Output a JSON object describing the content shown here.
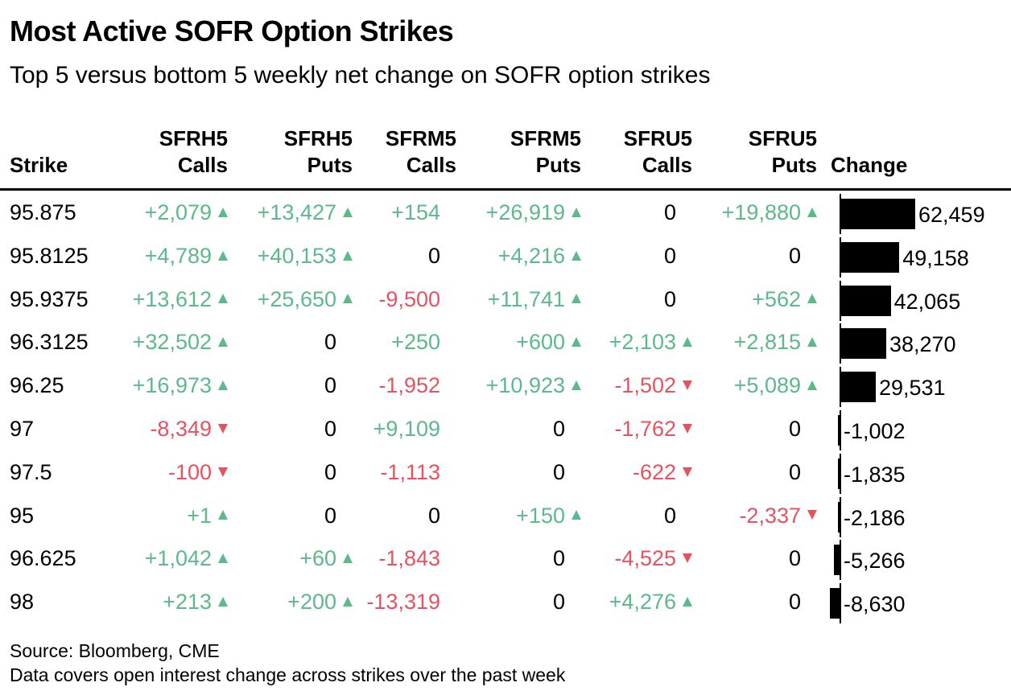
{
  "title": "Most Active SOFR Option Strikes",
  "subtitle": "Top 5 versus bottom 5 weekly net change on SOFR option strikes",
  "colors": {
    "positive": "#5bb98a",
    "negative": "#e4535f",
    "bar": "#000000"
  },
  "headers": {
    "strike": "Strike",
    "c1": [
      "SFRH5",
      "Calls"
    ],
    "c2": [
      "SFRH5",
      "Puts"
    ],
    "c3": [
      "SFRM5",
      "Calls"
    ],
    "c4": [
      "SFRM5",
      "Puts"
    ],
    "c5": [
      "SFRU5",
      "Calls"
    ],
    "c6": [
      "SFRU5",
      "Puts"
    ],
    "change": "Change"
  },
  "chart_data": {
    "type": "table",
    "title": "Most Active SOFR Option Strikes",
    "subtitle": "Top 5 versus bottom 5 weekly net change on SOFR option strikes",
    "columns": [
      "Strike",
      "SFRH5 Calls",
      "SFRH5 Puts",
      "SFRM5 Calls",
      "SFRM5 Puts",
      "SFRU5 Calls",
      "SFRU5 Puts",
      "Change"
    ],
    "rows": [
      {
        "strike": "95.875",
        "values": [
          "+2,079",
          "+13,427",
          "+154",
          "+26,919",
          "0",
          "+19,880"
        ],
        "arrows": [
          "up",
          "up",
          "",
          "up",
          "",
          "up"
        ],
        "change": 62459,
        "change_label": "62,459"
      },
      {
        "strike": "95.8125",
        "values": [
          "+4,789",
          "+40,153",
          "0",
          "+4,216",
          "0",
          "0"
        ],
        "arrows": [
          "up",
          "up",
          "",
          "up",
          "",
          ""
        ],
        "change": 49158,
        "change_label": "49,158"
      },
      {
        "strike": "95.9375",
        "values": [
          "+13,612",
          "+25,650",
          "-9,500",
          "+11,741",
          "0",
          "+562"
        ],
        "arrows": [
          "up",
          "up",
          "",
          "up",
          "",
          "up"
        ],
        "change": 42065,
        "change_label": "42,065"
      },
      {
        "strike": "96.3125",
        "values": [
          "+32,502",
          "0",
          "+250",
          "+600",
          "+2,103",
          "+2,815"
        ],
        "arrows": [
          "up",
          "",
          "",
          "up",
          "up",
          "up"
        ],
        "change": 38270,
        "change_label": "38,270"
      },
      {
        "strike": "96.25",
        "values": [
          "+16,973",
          "0",
          "-1,952",
          "+10,923",
          "-1,502",
          "+5,089"
        ],
        "arrows": [
          "up",
          "",
          "",
          "up",
          "down",
          "up"
        ],
        "change": 29531,
        "change_label": "29,531"
      },
      {
        "strike": "97",
        "values": [
          "-8,349",
          "0",
          "+9,109",
          "0",
          "-1,762",
          "0"
        ],
        "arrows": [
          "down",
          "",
          "",
          "",
          "down",
          ""
        ],
        "change": -1002,
        "change_label": "-1,002"
      },
      {
        "strike": "97.5",
        "values": [
          "-100",
          "0",
          "-1,113",
          "0",
          "-622",
          "0"
        ],
        "arrows": [
          "down",
          "",
          "",
          "",
          "down",
          ""
        ],
        "change": -1835,
        "change_label": "-1,835"
      },
      {
        "strike": "95",
        "values": [
          "+1",
          "0",
          "0",
          "+150",
          "0",
          "-2,337"
        ],
        "arrows": [
          "up",
          "",
          "",
          "up",
          "",
          "down"
        ],
        "change": -2186,
        "change_label": "-2,186"
      },
      {
        "strike": "96.625",
        "values": [
          "+1,042",
          "+60",
          "-1,843",
          "0",
          "-4,525",
          "0"
        ],
        "arrows": [
          "up",
          "up",
          "",
          "",
          "down",
          ""
        ],
        "change": -5266,
        "change_label": "-5,266"
      },
      {
        "strike": "98",
        "values": [
          "+213",
          "+200",
          "-13,319",
          "0",
          "+4,276",
          "0"
        ],
        "arrows": [
          "up",
          "up",
          "",
          "",
          "up",
          ""
        ],
        "change": -8630,
        "change_label": "-8,630"
      }
    ]
  },
  "footer": {
    "source": "Source: Bloomberg, CME",
    "note": "Data covers open interest change across strikes over the past week"
  }
}
